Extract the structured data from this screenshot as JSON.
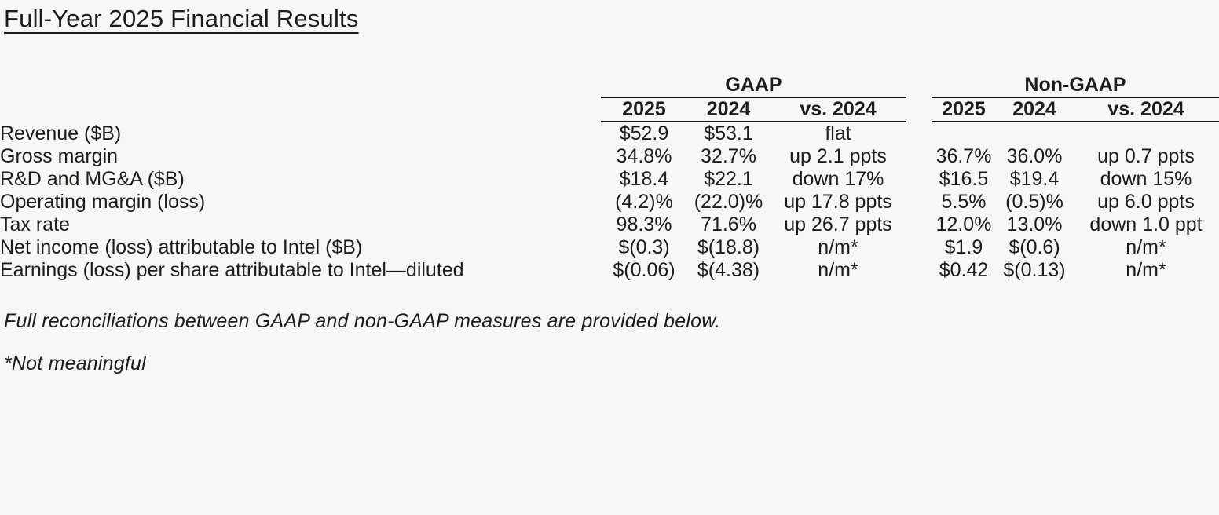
{
  "page": {
    "title": "Full-Year 2025 Financial Results",
    "background_color": "#f7f7f6",
    "text_color": "#1c1c1a",
    "rule_color": "#121210"
  },
  "table": {
    "groups": [
      {
        "label": "GAAP",
        "columns": [
          "2025",
          "2024",
          "vs. 2024"
        ]
      },
      {
        "label": "Non-GAAP",
        "columns": [
          "2025",
          "2024",
          "vs. 2024"
        ]
      }
    ],
    "rows": [
      {
        "label": "Revenue ($B)",
        "gaap": [
          "$52.9",
          "$53.1",
          "flat"
        ],
        "non_gaap": [
          "",
          "",
          ""
        ]
      },
      {
        "label": "Gross margin",
        "gaap": [
          "34.8%",
          "32.7%",
          "up 2.1 ppts"
        ],
        "non_gaap": [
          "36.7%",
          "36.0%",
          "up 0.7 ppts"
        ]
      },
      {
        "label": "R&D and MG&A ($B)",
        "gaap": [
          "$18.4",
          "$22.1",
          "down 17%"
        ],
        "non_gaap": [
          "$16.5",
          "$19.4",
          "down 15%"
        ]
      },
      {
        "label": "Operating margin (loss)",
        "gaap": [
          "(4.2)%",
          "(22.0)%",
          "up 17.8 ppts"
        ],
        "non_gaap": [
          "5.5%",
          "(0.5)%",
          "up 6.0 ppts"
        ]
      },
      {
        "label": "Tax rate",
        "gaap": [
          "98.3%",
          "71.6%",
          "up 26.7 ppts"
        ],
        "non_gaap": [
          "12.0%",
          "13.0%",
          "down 1.0 ppt"
        ]
      },
      {
        "label": "Net income (loss) attributable to Intel ($B)",
        "gaap": [
          "$(0.3)",
          "$(18.8)",
          "n/m*"
        ],
        "non_gaap": [
          "$1.9",
          "$(0.6)",
          "n/m*"
        ]
      },
      {
        "label": "Earnings (loss) per share attributable to Intel—diluted",
        "gaap": [
          "$(0.06)",
          "$(4.38)",
          "n/m*"
        ],
        "non_gaap": [
          "$0.42",
          "$(0.13)",
          "n/m*"
        ]
      }
    ]
  },
  "footnotes": [
    "Full reconciliations between GAAP and non-GAAP measures are provided below.",
    "*Not meaningful"
  ]
}
